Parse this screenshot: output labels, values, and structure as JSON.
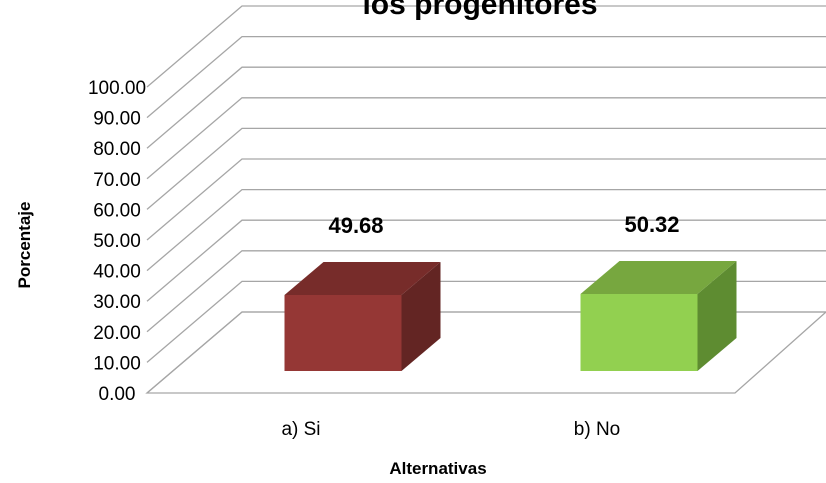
{
  "chart_data": {
    "type": "bar",
    "title": "los progenitores",
    "xlabel": "Alternativas",
    "ylabel": "Porcentaje",
    "categories": [
      "a) Si",
      "b) No"
    ],
    "values": [
      49.68,
      50.32
    ],
    "ylim": [
      0,
      100
    ],
    "yticks": [
      "0.00",
      "10.00",
      "20.00",
      "30.00",
      "40.00",
      "50.00",
      "60.00",
      "70.00",
      "80.00",
      "90.00",
      "100.00"
    ],
    "data_labels": [
      "49.68",
      "50.32"
    ],
    "grid": true,
    "three_d": true,
    "colors": {
      "bars": [
        "#953735",
        "#92D050"
      ],
      "bar_sides": [
        "#632523",
        "#5E8C31"
      ],
      "bar_tops": [
        "#772C2A",
        "#77A73F"
      ],
      "grid": "#A6A6A6"
    }
  }
}
